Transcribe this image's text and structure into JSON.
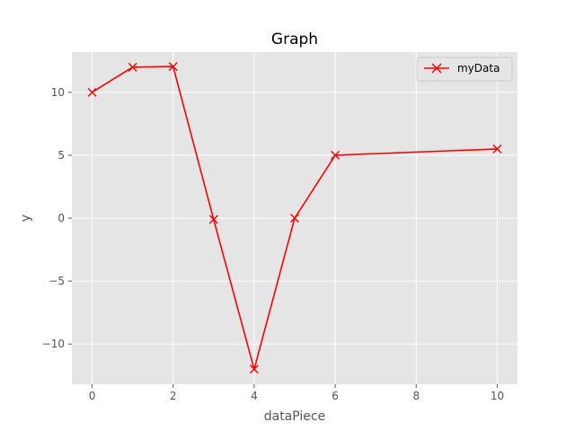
{
  "chart_data": {
    "type": "line",
    "title": "Graph",
    "xlabel": "dataPiece",
    "ylabel": "y",
    "xlim": [
      -0.5,
      10.5
    ],
    "ylim": [
      -13.2,
      13.2
    ],
    "xticks": [
      0,
      2,
      4,
      6,
      8,
      10
    ],
    "yticks": [
      -10,
      -5,
      0,
      5,
      10
    ],
    "xtick_labels": [
      "0",
      "2",
      "4",
      "6",
      "8",
      "10"
    ],
    "ytick_labels": [
      "−10",
      "−5",
      "0",
      "5",
      "10"
    ],
    "grid": true,
    "legend_position": "top-right",
    "series": [
      {
        "name": "myData",
        "color": "#ff0000",
        "marker": "x",
        "x": [
          0,
          1,
          2,
          3,
          4,
          5,
          6,
          10
        ],
        "y": [
          10,
          12,
          12.05,
          -0.1,
          -12,
          0,
          5,
          5.5
        ]
      }
    ]
  }
}
